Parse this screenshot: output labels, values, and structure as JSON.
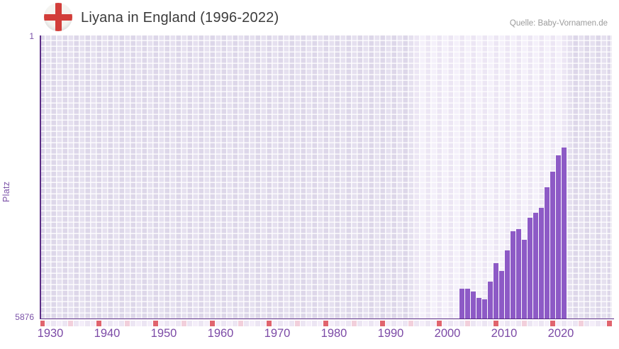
{
  "header": {
    "title": "Liyana in England (1996-2022)",
    "source": "Quelle: Baby-Vornamen.de",
    "flag_icon": "england-flag"
  },
  "chart_data": {
    "type": "bar",
    "title": "Liyana in England (1996-2022)",
    "xlabel": "",
    "ylabel": "Platz",
    "y_axis": {
      "top_label": "1",
      "bottom_label": "5876",
      "min": 1,
      "max": 5876,
      "inverted": true,
      "note": "lower Platz value = better rank = taller bar"
    },
    "x_axis": {
      "tick_labels": [
        "1930",
        "1940",
        "1950",
        "1960",
        "1970",
        "1980",
        "1990",
        "2000",
        "2010",
        "2020"
      ],
      "strip_start_year": 1930,
      "strip_end_year": 2030,
      "grid": true
    },
    "data_period": {
      "start": 1996,
      "end": 2022
    },
    "series": [
      {
        "name": "Platz",
        "points": [
          {
            "year": 2004,
            "platz": 5640
          },
          {
            "year": 2005,
            "platz": 5640
          },
          {
            "year": 2006,
            "platz": 5705
          },
          {
            "year": 2007,
            "platz": 5850
          },
          {
            "year": 2008,
            "platz": 5876
          },
          {
            "year": 2009,
            "platz": 5480
          },
          {
            "year": 2010,
            "platz": 5075
          },
          {
            "year": 2011,
            "platz": 5255
          },
          {
            "year": 2012,
            "platz": 4795
          },
          {
            "year": 2013,
            "platz": 4360
          },
          {
            "year": 2014,
            "platz": 4320
          },
          {
            "year": 2015,
            "platz": 4550
          },
          {
            "year": 2016,
            "platz": 4060
          },
          {
            "year": 2017,
            "platz": 3950
          },
          {
            "year": 2018,
            "platz": 3835
          },
          {
            "year": 2019,
            "platz": 3390
          },
          {
            "year": 2020,
            "platz": 3030
          },
          {
            "year": 2021,
            "platz": 2670
          },
          {
            "year": 2022,
            "platz": 2505
          }
        ]
      }
    ]
  },
  "colors": {
    "bar": "#8d5ac6",
    "axis": "#5b2d86",
    "tick_decade_red": "#e0646e",
    "tick_half_decade_pink": "#f2cfdb",
    "tick_strip_a": "#ece5f3",
    "tick_strip_b": "#f4eef9",
    "x_label_purple": "#7c4aa6",
    "y_label_purple": "#7b52a8",
    "title_text": "#3b3b3b",
    "source_text": "#9b9b9b",
    "flag_cross_red": "#d23d39"
  }
}
